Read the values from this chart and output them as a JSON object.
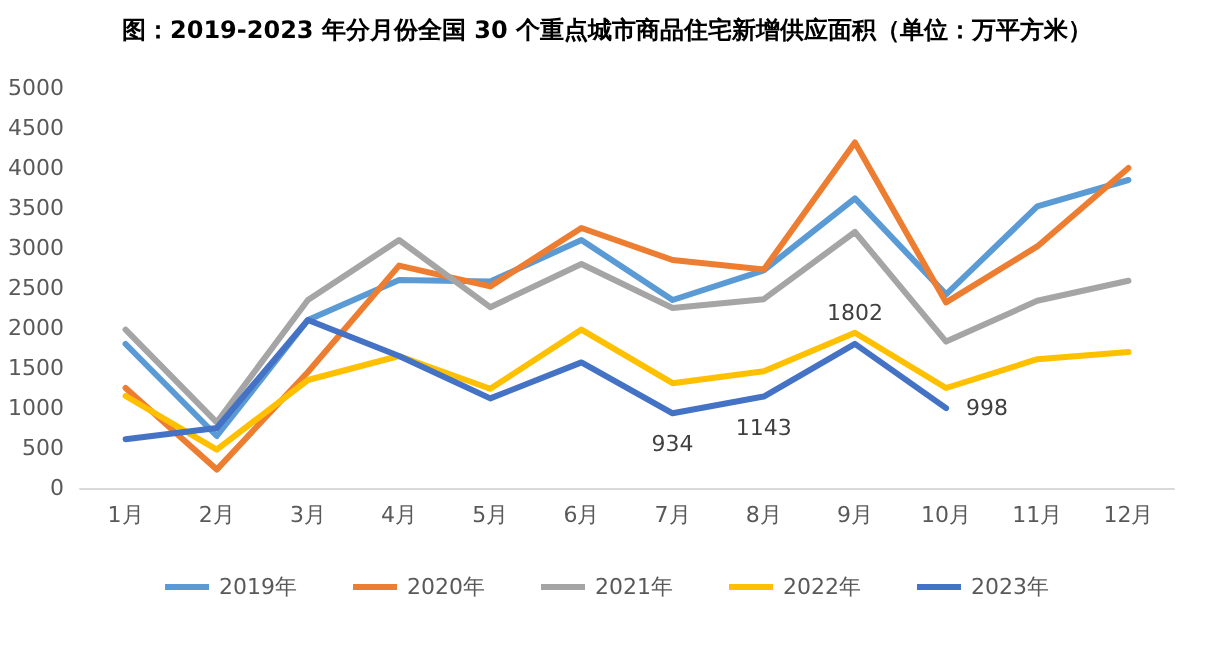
{
  "chart_data": {
    "type": "line",
    "title": "图：2019-2023 年分月份全国 30 个重点城市商品住宅新增供应面积（单位：万平方米）",
    "categories": [
      "1月",
      "2月",
      "3月",
      "4月",
      "5月",
      "6月",
      "7月",
      "8月",
      "9月",
      "10月",
      "11月",
      "12月"
    ],
    "series": [
      {
        "name": "2019年",
        "color": "#5b9bd5",
        "values": [
          1800,
          650,
          2100,
          2600,
          2580,
          3100,
          2350,
          2720,
          3620,
          2420,
          3520,
          3850
        ]
      },
      {
        "name": "2020年",
        "color": "#ed7d31",
        "values": [
          1250,
          230,
          1450,
          2780,
          2520,
          3250,
          2850,
          2730,
          4320,
          2320,
          3020,
          4000
        ]
      },
      {
        "name": "2021年",
        "color": "#a5a5a5",
        "values": [
          1980,
          820,
          2350,
          3100,
          2260,
          2800,
          2250,
          2360,
          3200,
          1830,
          2340,
          2590
        ]
      },
      {
        "name": "2022年",
        "color": "#ffc000",
        "values": [
          1150,
          480,
          1350,
          1650,
          1240,
          1980,
          1310,
          1460,
          1940,
          1250,
          1610,
          1700
        ]
      },
      {
        "name": "2023年",
        "color": "#4472c4",
        "values": [
          610,
          750,
          2100,
          1650,
          1120,
          1570,
          934,
          1143,
          1802,
          998,
          null,
          null
        ],
        "value_labels": [
          null,
          null,
          null,
          null,
          null,
          null,
          "934",
          "1143",
          "1802",
          "998",
          null,
          null
        ]
      }
    ],
    "ylim": [
      0,
      5000
    ],
    "yticks": [
      0,
      500,
      1000,
      1500,
      2000,
      2500,
      3000,
      3500,
      4000,
      4500,
      5000
    ],
    "grid": false,
    "legend": "bottom",
    "marker": "none",
    "line_style": "solid"
  }
}
